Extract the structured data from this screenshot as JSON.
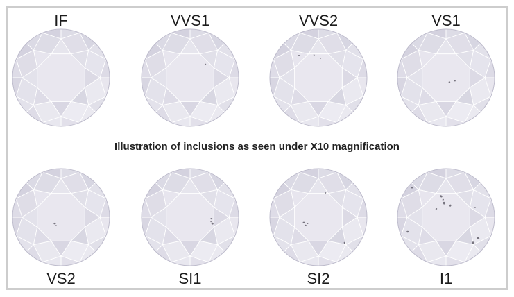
{
  "caption": "Illustration of inclusions as seen under X10 magnification",
  "grades": [
    {
      "label": "IF"
    },
    {
      "label": "VVS1"
    },
    {
      "label": "VVS2"
    },
    {
      "label": "VS1"
    },
    {
      "label": "VS2"
    },
    {
      "label": "SI1"
    },
    {
      "label": "SI2"
    },
    {
      "label": "I1"
    }
  ],
  "colors": {
    "frame": "#cdcdcd",
    "text": "#1c1c1c",
    "diamond_light": "#f4f3f8",
    "diamond_dark": "#cbc9d8",
    "facet_edge": "#ffffff",
    "girdle_edge": "#bcbacb",
    "inclusion": "#4f4c58"
  }
}
